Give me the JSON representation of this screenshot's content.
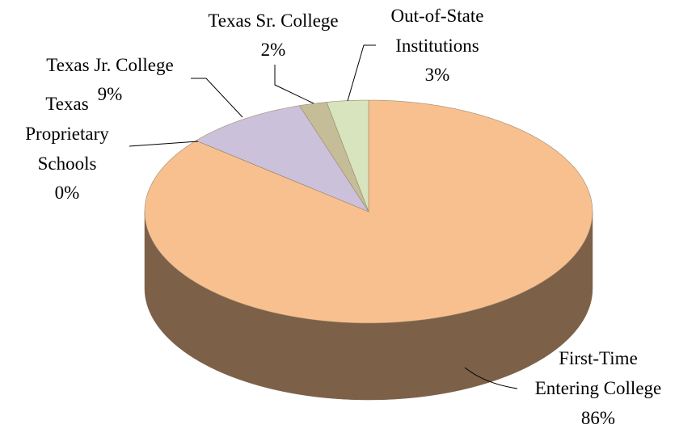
{
  "chart_data": {
    "type": "pie",
    "categories": [
      "First-Time\nEntering College",
      "Texas\nProprietary\nSchools",
      "Texas Jr. College",
      "Texas Sr. College",
      "Out-of-State\nInstitutions"
    ],
    "values": [
      86,
      0,
      9,
      2,
      3
    ],
    "value_labels": [
      "86%",
      "0%",
      "9%",
      "2%",
      "3%"
    ],
    "colors": [
      "#F9C08F",
      "#F2DCDB",
      "#CCC1DA",
      "#C4BD97",
      "#D7E4BD"
    ],
    "style": "3d"
  }
}
